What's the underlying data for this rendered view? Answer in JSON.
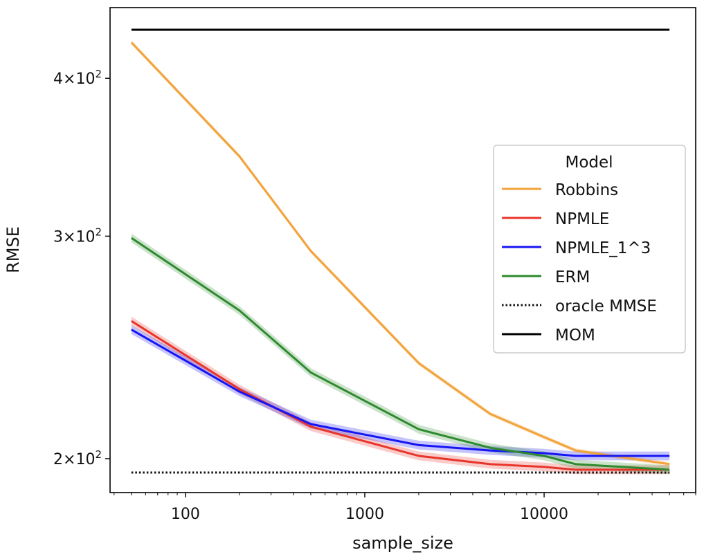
{
  "chart_data": {
    "type": "line",
    "title": "",
    "xlabel": "sample_size",
    "ylabel": "RMSE",
    "xscale": "log",
    "yscale": "log",
    "xlim": [
      38,
      70000
    ],
    "ylim": [
      188,
      455
    ],
    "xticks": [
      {
        "value": 100,
        "label": "100"
      },
      {
        "value": 1000,
        "label": "1000"
      },
      {
        "value": 10000,
        "label": "10000"
      }
    ],
    "yticks": [
      {
        "value": 200,
        "base": "2",
        "exp": "2"
      },
      {
        "value": 300,
        "base": "3",
        "exp": "2"
      },
      {
        "value": 400,
        "base": "4",
        "exp": "2"
      }
    ],
    "x": [
      50,
      200,
      500,
      2000,
      5000,
      10000,
      15000,
      50000
    ],
    "series": [
      {
        "name": "Robbins",
        "color": "#f2a33a",
        "style": "solid",
        "band": 0.004,
        "values": [
          427,
          347,
          292,
          238,
          217,
          208,
          203,
          198
        ]
      },
      {
        "name": "NPMLE",
        "color": "#e8352b",
        "style": "solid",
        "band": 0.008,
        "values": [
          257,
          227,
          212,
          201,
          198,
          197,
          196,
          196
        ]
      },
      {
        "name": "NPMLE_1^3",
        "color": "#1616f5",
        "style": "solid",
        "band": 0.008,
        "values": [
          253,
          226,
          213,
          205,
          203,
          202,
          201,
          201
        ]
      },
      {
        "name": "ERM",
        "color": "#2e8a2e",
        "style": "solid",
        "band": 0.008,
        "values": [
          299,
          262,
          234,
          211,
          204,
          201,
          198,
          196
        ]
      },
      {
        "name": "oracle MMSE",
        "color": "#111111",
        "style": "dotted",
        "band": 0,
        "values": [
          195,
          195,
          195,
          195,
          195,
          195,
          195,
          195
        ]
      },
      {
        "name": "MOM",
        "color": "#000000",
        "style": "solid",
        "band": 0,
        "values": [
          437,
          437,
          437,
          437,
          437,
          437,
          437,
          437
        ]
      }
    ],
    "legend": {
      "title": "Model",
      "position": "center-right"
    }
  }
}
